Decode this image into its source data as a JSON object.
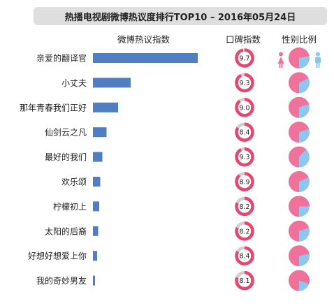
{
  "chart_data": {
    "type": "bar",
    "title": "热播电视剧微博热议度排行TOP10 – 2016年05月24日",
    "columns": {
      "bar": "微博热议指数",
      "rating": "口碑指数",
      "gender": "性别比例"
    },
    "categories": [
      "亲爱的翻译官",
      "小丈夫",
      "那年青春我们正好",
      "仙剑云之凡",
      "最好的我们",
      "欢乐颂",
      "柠檬初上",
      "太阳的后裔",
      "好想好想爱上你",
      "我的奇妙男友"
    ],
    "values": [
      100,
      36,
      24,
      13,
      9,
      7,
      6,
      5,
      4,
      2
    ],
    "ratings": [
      9.7,
      9.3,
      9.0,
      8.4,
      9.3,
      8.9,
      8.2,
      8.2,
      8.4,
      8.1
    ],
    "rating_max": 10,
    "female_share": [
      0.72,
      0.68,
      0.7,
      0.7,
      0.62,
      0.68,
      0.75,
      0.7,
      0.72,
      0.8
    ],
    "colors": {
      "bar": "#4f7fc1",
      "female": "#f0729b",
      "male": "#8ec6ee",
      "ring_empty": "#cfcfcf",
      "ring_fill": "#e8466f",
      "title_bg": "#dedede"
    }
  }
}
